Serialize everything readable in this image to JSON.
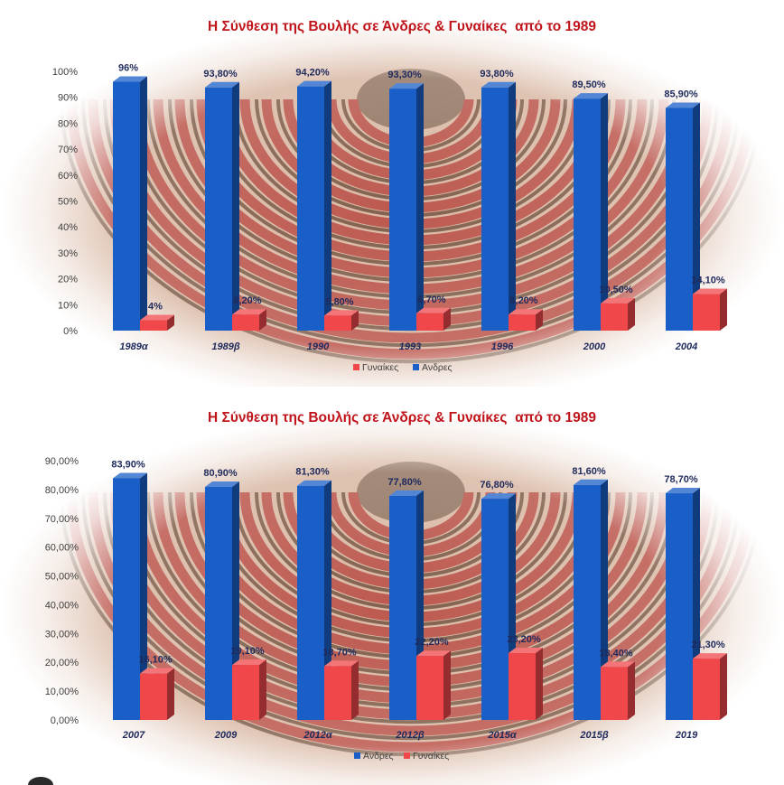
{
  "chart_data": [
    {
      "type": "bar",
      "title": "Η Σύνθεση της Βουλής σε Άνδρες & Γυναίκες  από το 1989",
      "title_color": "#C0141B",
      "categories": [
        "1989α",
        "1989β",
        "1990",
        "1993",
        "1996",
        "2000",
        "2004"
      ],
      "series": [
        {
          "name": "Ανδρες",
          "color": "#1A5FC8",
          "values": [
            96,
            93.8,
            94.2,
            93.3,
            93.8,
            89.5,
            85.9
          ],
          "labels": [
            "96%",
            "93,80%",
            "94,20%",
            "93,30%",
            "93,80%",
            "89,50%",
            "85,90%"
          ]
        },
        {
          "name": "Γυναίκες",
          "color": "#F0474B",
          "values": [
            4,
            6.2,
            5.8,
            6.7,
            6.2,
            10.5,
            14.1
          ],
          "labels": [
            "4%",
            "6,20%",
            "5,80%",
            "6,70%",
            "6,20%",
            "10,50%",
            "14,10%"
          ]
        }
      ],
      "y_tick_labels": [
        "0%",
        "10%",
        "20%",
        "30%",
        "40%",
        "50%",
        "60%",
        "70%",
        "80%",
        "90%",
        "100%"
      ],
      "ylim": [
        0,
        100
      ],
      "grid": false,
      "legend": {
        "placement": "bottom",
        "order": [
          1,
          0
        ]
      }
    },
    {
      "type": "bar",
      "title": "Η Σύνθεση της Βουλής σε Άνδρες & Γυναίκες  από το 1989",
      "title_color": "#C0141B",
      "categories": [
        "2007",
        "2009",
        "2012α",
        "2012β",
        "2015α",
        "2015β",
        "2019"
      ],
      "series": [
        {
          "name": "Ανδρες",
          "color": "#1A5FC8",
          "values": [
            83.9,
            80.9,
            81.3,
            77.8,
            76.8,
            81.6,
            78.7
          ],
          "labels": [
            "83,90%",
            "80,90%",
            "81,30%",
            "77,80%",
            "76,80%",
            "81,60%",
            "78,70%"
          ]
        },
        {
          "name": "Γυναίκες",
          "color": "#F0474B",
          "values": [
            16.1,
            19.1,
            18.7,
            22.2,
            23.2,
            18.4,
            21.3
          ],
          "labels": [
            "16,10%",
            "19,10%",
            "18,70%",
            "22,20%",
            "23,20%",
            "18,40%",
            "21,30%"
          ]
        }
      ],
      "y_tick_labels": [
        "0,00%",
        "10,00%",
        "20,00%",
        "30,00%",
        "40,00%",
        "50,00%",
        "60,00%",
        "70,00%",
        "80,00%",
        "90,00%"
      ],
      "ylim": [
        0,
        90
      ],
      "grid": false,
      "legend": {
        "placement": "bottom",
        "order": [
          0,
          1
        ]
      }
    }
  ]
}
